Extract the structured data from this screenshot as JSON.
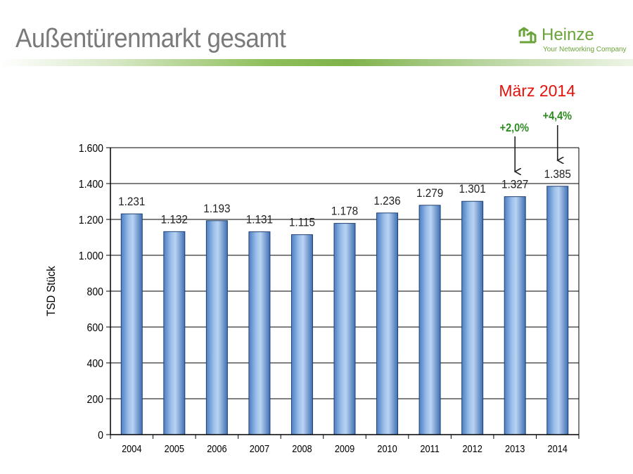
{
  "slide": {
    "title": "Außentürenmarkt gesamt",
    "date": "März 2014"
  },
  "logo": {
    "name": "Heinze",
    "tagline": "Your Networking Company",
    "icon": "heinze-logo-icon"
  },
  "annotations": {
    "growth_2013": "+2,0%",
    "growth_2014": "+4,4%"
  },
  "colors": {
    "title": "#7a7a7a",
    "date": "#e3120b",
    "growth": "#2e8b22",
    "bar": "#7ea6d9",
    "brand": "#6aa33a"
  },
  "chart_data": {
    "type": "bar",
    "categories": [
      "2004",
      "2005",
      "2006",
      "2007",
      "2008",
      "2009",
      "2010",
      "2011",
      "2012",
      "2013",
      "2014"
    ],
    "values": [
      1231,
      1132,
      1193,
      1131,
      1115,
      1178,
      1236,
      1279,
      1301,
      1327,
      1385
    ],
    "value_labels": [
      "1.231",
      "1.132",
      "1.193",
      "1.131",
      "1.115",
      "1.178",
      "1.236",
      "1.279",
      "1.301",
      "1.327",
      "1.385"
    ],
    "title": "",
    "xlabel": "",
    "ylabel": "TSD Stück",
    "ylim": [
      0,
      1600
    ],
    "yticks": [
      0,
      200,
      400,
      600,
      800,
      1000,
      1200,
      1400,
      1600
    ],
    "ytick_labels": [
      "0",
      "200",
      "400",
      "600",
      "800",
      "1.000",
      "1.200",
      "1.400",
      "1.600"
    ],
    "grid": true,
    "legend": "none"
  }
}
